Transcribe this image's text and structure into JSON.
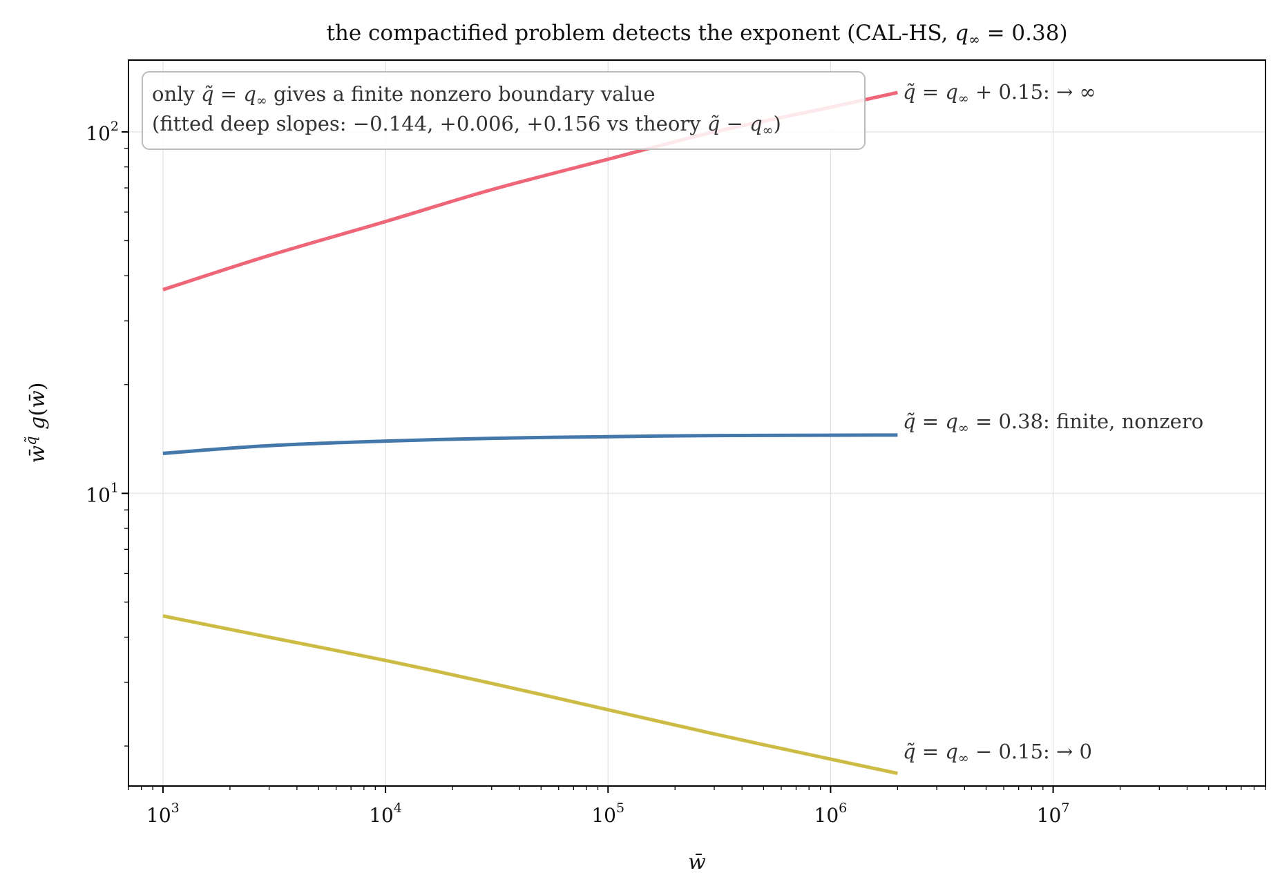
{
  "chart_data": {
    "type": "line",
    "title": "the compactified problem detects the exponent (CAL-HS, q∞ = 0.38)",
    "xlabel": "w̄",
    "ylabel": "w̄^q̃ g(w̄)",
    "xscale": "log",
    "yscale": "log",
    "xlim": [
      700,
      90000000
    ],
    "ylim": [
      1.55,
      158
    ],
    "grid": true,
    "x_ticks": [
      {
        "base": "10",
        "exp": "3",
        "value": 1000
      },
      {
        "base": "10",
        "exp": "4",
        "value": 10000
      },
      {
        "base": "10",
        "exp": "5",
        "value": 100000
      },
      {
        "base": "10",
        "exp": "6",
        "value": 1000000
      },
      {
        "base": "10",
        "exp": "7",
        "value": 10000000
      }
    ],
    "y_ticks": [
      {
        "base": "10",
        "exp": "1",
        "value": 10
      },
      {
        "base": "10",
        "exp": "2",
        "value": 100
      }
    ],
    "series": [
      {
        "name": "q̃ = q∞ + 0.15:  → ∞",
        "color": "#ee6677",
        "points": [
          [
            1000,
            36.6
          ],
          [
            3000,
            45.5
          ],
          [
            10000,
            56.5
          ],
          [
            30000,
            69.2
          ],
          [
            100000,
            84.0
          ],
          [
            300000,
            100.0
          ],
          [
            1000000,
            117.0
          ],
          [
            2000000,
            128.5
          ]
        ]
      },
      {
        "name": "q̃ = q∞ = 0.38:  finite, nonzero",
        "color": "#4477aa",
        "points": [
          [
            1000,
            12.9
          ],
          [
            3000,
            13.55
          ],
          [
            10000,
            13.95
          ],
          [
            30000,
            14.2
          ],
          [
            100000,
            14.35
          ],
          [
            300000,
            14.45
          ],
          [
            1000000,
            14.48
          ],
          [
            2000000,
            14.5
          ]
        ]
      },
      {
        "name": "q̃ = q∞ − 0.15:  → 0",
        "color": "#ccbb44",
        "points": [
          [
            1000,
            4.58
          ],
          [
            3000,
            4.0
          ],
          [
            10000,
            3.45
          ],
          [
            30000,
            2.98
          ],
          [
            100000,
            2.52
          ],
          [
            300000,
            2.16
          ],
          [
            1000000,
            1.84
          ],
          [
            2000000,
            1.68
          ]
        ]
      }
    ],
    "annotation": {
      "line1": "only q̃ = q∞ gives a finite nonzero boundary value",
      "line2": "(fitted deep slopes: −0.144, +0.006, +0.156 vs theory q̃ − q∞)"
    },
    "legend_placement": "top-left"
  }
}
